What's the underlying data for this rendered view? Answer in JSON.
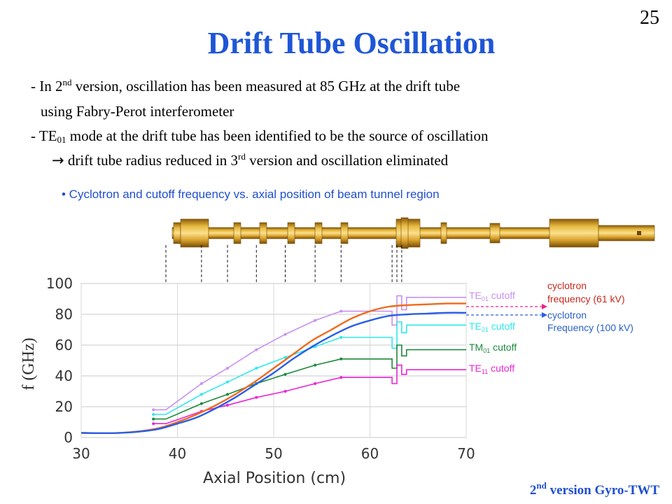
{
  "page_number": "25",
  "title": "Drift Tube Oscillation",
  "bullets": {
    "line1_a": "- In 2",
    "line1_sup": "nd",
    "line1_b": " version, oscillation has been measured at 85 GHz at the drift tube",
    "line2": "using Fabry-Perot interferometer",
    "line3_a": "- TE",
    "line3_sub": "01",
    "line3_b": " mode at the drift tube has been identified to be the source of oscillation",
    "line4_arrow": "→",
    "line4_a": " drift tube radius reduced in 3",
    "line4_sup": "rd",
    "line4_b": " version and oscillation eliminated"
  },
  "subtitle": "• Cyclotron and cutoff frequency vs. axial position of beam tunnel region",
  "footer": {
    "a": "2",
    "sup": "nd",
    "b": " version Gyro-TWT"
  },
  "labels": {
    "te01_a": "TE",
    "te01_sub": "01",
    "te01_b": " cutoff",
    "te21_a": "TE",
    "te21_sub": "21",
    "te21_b": " cutoff",
    "tm01_a": "TM",
    "tm01_sub": "01",
    "tm01_b": " cutoff",
    "te11_a": "TE",
    "te11_sub": "11",
    "te11_b": " cutoff",
    "cyc61_l1": "cyclotron",
    "cyc61_l2": "frequency (61 kV)",
    "cyc100_l1": "cyclotron",
    "cyc100_l2": "Frequency (100 kV)"
  },
  "colors": {
    "title": "#1f56d6",
    "te01": "#c890f0",
    "te21": "#2ee8ec",
    "tm01": "#1b8a3c",
    "te11": "#e824d6",
    "cyc61": "#f06a1c",
    "cyc100": "#2a5ee8",
    "cyc61_label": "#c8281c",
    "cyc100_label": "#2a62c8",
    "tube": "#c9961e"
  },
  "chart_data": {
    "type": "line",
    "xlabel": "Axial Position (cm)",
    "ylabel": "f (GHz)",
    "xlim": [
      30,
      70
    ],
    "ylim": [
      0,
      100
    ],
    "xticks": [
      "30",
      "40",
      "50",
      "60",
      "70"
    ],
    "yticks": [
      "0",
      "20",
      "40",
      "60",
      "80",
      "100"
    ],
    "grid": true,
    "series": [
      {
        "name": "TE01 cutoff",
        "color": "#c890f0",
        "x": [
          37.5,
          38.8,
          42.5,
          45.2,
          48.2,
          51.2,
          54.3,
          57,
          59.5,
          62.3,
          62.3,
          62.8,
          62.8,
          63.3,
          63.3,
          63.8,
          63.8,
          70
        ],
        "y": [
          18,
          18,
          35,
          45,
          57,
          67,
          76,
          82,
          82,
          82,
          73,
          73,
          92,
          92,
          83,
          83,
          91,
          91
        ]
      },
      {
        "name": "TE21 cutoff",
        "color": "#2ee8ec",
        "x": [
          37.5,
          38.8,
          42.5,
          45.2,
          48.2,
          51.2,
          54.3,
          57,
          59.5,
          62.3,
          62.3,
          62.8,
          62.8,
          63.3,
          63.3,
          63.8,
          63.8,
          70
        ],
        "y": [
          15,
          15,
          28,
          36,
          45,
          52,
          59,
          65,
          65,
          65,
          58,
          58,
          75,
          75,
          68,
          68,
          73,
          73
        ]
      },
      {
        "name": "TM01 cutoff",
        "color": "#1b8a3c",
        "x": [
          37.5,
          38.8,
          42.5,
          45.2,
          48.2,
          51.2,
          54.3,
          57,
          59.5,
          62.3,
          62.3,
          62.8,
          62.8,
          63.3,
          63.3,
          63.8,
          63.8,
          70
        ],
        "y": [
          12,
          12,
          22,
          28,
          35,
          41,
          47,
          51,
          51,
          51,
          45,
          45,
          60,
          60,
          53,
          53,
          57,
          57
        ]
      },
      {
        "name": "TE11 cutoff",
        "color": "#e824d6",
        "x": [
          37.5,
          38.8,
          42.5,
          45.2,
          48.2,
          51.2,
          54.3,
          57,
          59.5,
          62.3,
          62.3,
          62.8,
          62.8,
          63.3,
          63.3,
          63.8,
          63.8,
          70
        ],
        "y": [
          9,
          9,
          17,
          21,
          26,
          30,
          35,
          39,
          39,
          39,
          35,
          35,
          47,
          47,
          41,
          41,
          44,
          44
        ]
      },
      {
        "name": "cyclotron frequency (61 kV)",
        "color": "#f06a1c",
        "x": [
          30,
          32,
          34,
          36,
          38,
          40,
          42,
          44,
          46,
          48,
          50,
          52,
          54,
          56,
          58,
          60,
          62,
          64,
          66,
          68,
          70
        ],
        "y": [
          3,
          2.8,
          3,
          4,
          6,
          10,
          15,
          21,
          28,
          36,
          45,
          54,
          63,
          70,
          77,
          82,
          85,
          86,
          86.5,
          87,
          87
        ]
      },
      {
        "name": "cyclotron Frequency (100 kV)",
        "color": "#2a5ee8",
        "x": [
          30,
          32,
          34,
          36,
          38,
          40,
          42,
          44,
          46,
          48,
          50,
          52,
          54,
          56,
          58,
          60,
          62,
          64,
          66,
          68,
          70
        ],
        "y": [
          3,
          2.8,
          3,
          3.8,
          5.5,
          9,
          13,
          19,
          26,
          34,
          42,
          51,
          59,
          66,
          72,
          76,
          79,
          80,
          80.5,
          81,
          81
        ]
      }
    ]
  }
}
